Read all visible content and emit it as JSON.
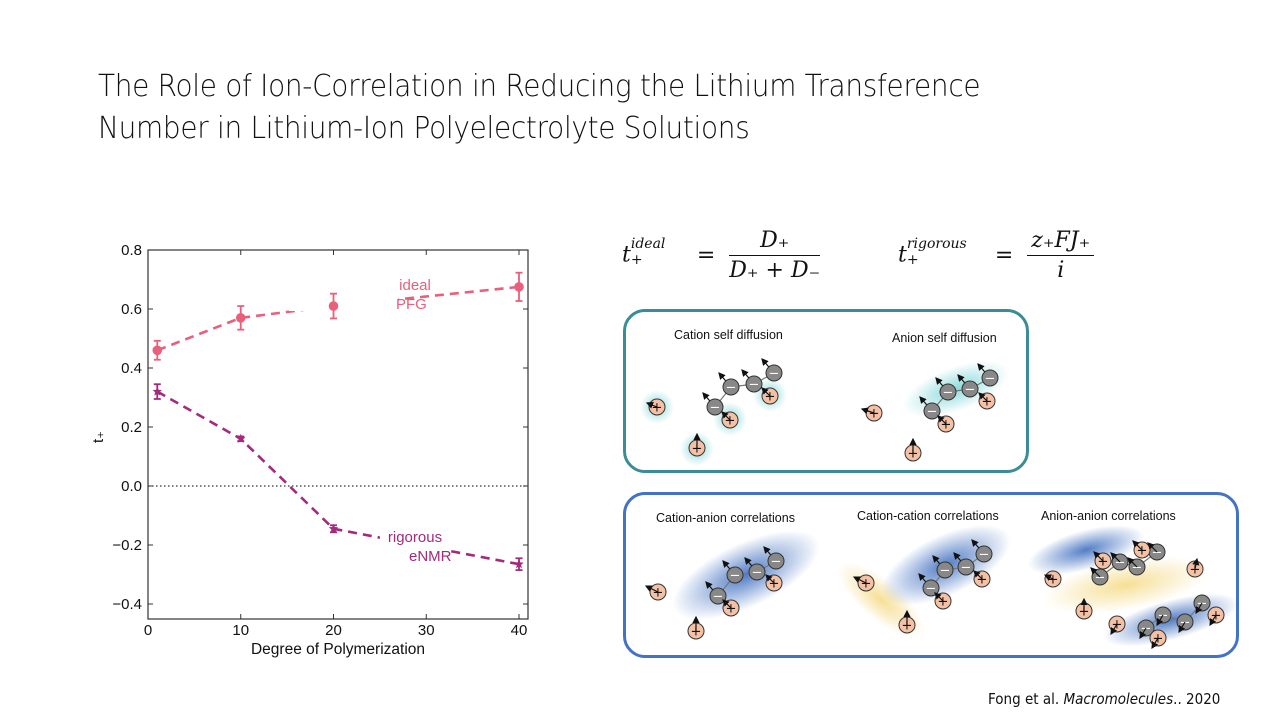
{
  "slide": {
    "title_line1": "The Role of Ion-Correlation in Reducing the Lithium Transference",
    "title_line2": "Number in Lithium-Ion Polyelectrolyte Solutions",
    "citation_authors": "Fong et al. ",
    "citation_journal": "Macromolecules",
    "citation_suffix": ".. 2020"
  },
  "formulas": {
    "ideal": {
      "lhs": "t",
      "lhs_sub": "+",
      "lhs_sup": "ideal",
      "eq": "=",
      "numerator": "D₊",
      "denominator": "D₊ + D₋"
    },
    "rigorous": {
      "lhs": "t",
      "lhs_sub": "+",
      "lhs_sup": "rigorous",
      "eq": "=",
      "numerator": "z₊FJ₊",
      "denominator": "i"
    }
  },
  "diagrams": {
    "self_diffusion_box": {
      "border_color": "#3a8d96",
      "panels": [
        {
          "label": "Cation self diffusion"
        },
        {
          "label": "Anion self diffusion"
        }
      ]
    },
    "correlation_box": {
      "border_color": "#4472c4",
      "panels": [
        {
          "label": "Cation-anion correlations"
        },
        {
          "label": "Cation-cation correlations"
        },
        {
          "label": "Anion-anion correlations"
        }
      ]
    },
    "symbols": {
      "cation": "+",
      "anion": "−"
    },
    "colors": {
      "cation_fill": "#f5c1a5",
      "anion_fill": "#888888",
      "cyan_glow": "#7fd6d8",
      "blue_glow": "#3f6fc0",
      "yellow_glow": "#f5dc8a"
    }
  },
  "chart_data": {
    "type": "line",
    "title": "",
    "xlabel": "Degree of Polymerization",
    "ylabel": "t₊",
    "xlim": [
      0,
      41
    ],
    "ylim": [
      -0.45,
      0.8
    ],
    "xticks": [
      0,
      10,
      20,
      30,
      40
    ],
    "xtick_labels": [
      "0",
      "10",
      "20",
      "30",
      "40"
    ],
    "yticks": [
      0.8,
      0.6,
      0.4,
      0.2,
      0.0,
      -0.2,
      -0.4
    ],
    "ytick_labels": [
      "0.8",
      "0.6",
      "0.4",
      "0.2",
      "0.0",
      "−0.2",
      "−0.4"
    ],
    "grid": false,
    "reference_line": {
      "y": 0.0,
      "style": "dotted"
    },
    "x": [
      1,
      10,
      20,
      40
    ],
    "series": [
      {
        "name": "ideal PFG",
        "label_line1": "ideal",
        "label_line2": "PFG",
        "color": "#e8607a",
        "marker": "circle",
        "line": "dashed",
        "values": [
          0.46,
          0.57,
          0.61,
          0.675
        ],
        "errors": [
          0.032,
          0.04,
          0.042,
          0.048
        ]
      },
      {
        "name": "rigorous eNMR",
        "label_line1": "rigorous",
        "label_line2": "eNMR",
        "color": "#a32a7c",
        "marker": "star",
        "line": "dashed",
        "values": [
          0.32,
          0.16,
          -0.145,
          -0.265
        ],
        "errors": [
          0.025,
          0.008,
          0.012,
          0.02
        ]
      }
    ]
  }
}
